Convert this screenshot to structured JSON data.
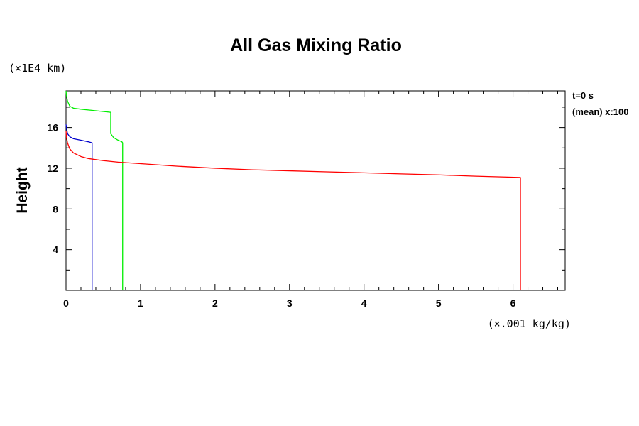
{
  "chart_data": {
    "type": "line",
    "title": "All Gas Mixing Ratio",
    "ylabel": "Height",
    "y_unit": "(×1E4 km)",
    "x_unit": "(×.001 kg/kg)",
    "annotations": [
      "t=0 s",
      "(mean) x:100"
    ],
    "xlim": [
      0,
      6.7
    ],
    "ylim": [
      0,
      19.6
    ],
    "x_ticks": [
      0,
      1,
      2,
      3,
      4,
      5,
      6
    ],
    "x_tick_labels": [
      "0",
      "1",
      "2",
      "3",
      "4",
      "5",
      "6"
    ],
    "y_ticks": [
      4,
      8,
      12,
      16
    ],
    "y_tick_labels": [
      "4",
      "8",
      "12",
      "16"
    ],
    "grid": false,
    "series": [
      {
        "color": "#00ee00",
        "points": [
          [
            0.76,
            0
          ],
          [
            0.76,
            14.5
          ],
          [
            0.75,
            14.6
          ],
          [
            0.7,
            14.75
          ],
          [
            0.64,
            15.0
          ],
          [
            0.6,
            15.4
          ],
          [
            0.6,
            17.5
          ],
          [
            0.4,
            17.65
          ],
          [
            0.2,
            17.8
          ],
          [
            0.1,
            17.9
          ],
          [
            0.05,
            18.1
          ],
          [
            0.02,
            18.6
          ],
          [
            0.005,
            19.2
          ],
          [
            0.0,
            19.6
          ]
        ]
      },
      {
        "color": "#0000cc",
        "points": [
          [
            0.35,
            0
          ],
          [
            0.35,
            14.5
          ],
          [
            0.3,
            14.6
          ],
          [
            0.2,
            14.75
          ],
          [
            0.1,
            14.9
          ],
          [
            0.05,
            15.1
          ],
          [
            0.02,
            15.4
          ],
          [
            0.01,
            15.8
          ],
          [
            0.0,
            16.3
          ]
        ]
      },
      {
        "color": "#ff0000",
        "points": [
          [
            6.1,
            0
          ],
          [
            6.1,
            11.1
          ],
          [
            5.5,
            11.22
          ],
          [
            5.0,
            11.35
          ],
          [
            4.5,
            11.45
          ],
          [
            4.0,
            11.55
          ],
          [
            3.5,
            11.65
          ],
          [
            3.0,
            11.75
          ],
          [
            2.5,
            11.85
          ],
          [
            2.0,
            12.0
          ],
          [
            1.5,
            12.2
          ],
          [
            1.0,
            12.45
          ],
          [
            0.7,
            12.6
          ],
          [
            0.5,
            12.75
          ],
          [
            0.3,
            12.95
          ],
          [
            0.2,
            13.15
          ],
          [
            0.1,
            13.5
          ],
          [
            0.05,
            13.9
          ],
          [
            0.02,
            14.5
          ],
          [
            0.005,
            15.1
          ],
          [
            0.0,
            15.7
          ]
        ]
      }
    ]
  }
}
